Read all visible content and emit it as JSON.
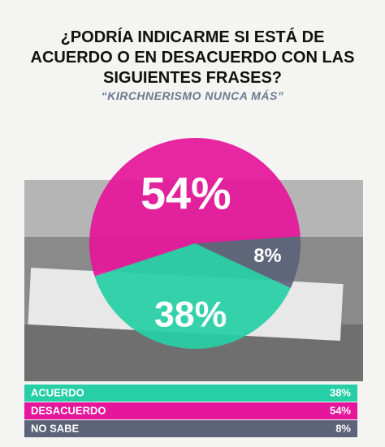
{
  "chart_data": {
    "type": "pie",
    "title": "¿PODRÍA INDICARME SI ESTÁ DE ACUERDO O EN DESACUERDO CON LAS SIGUIENTES FRASES?",
    "subtitle": "“KIRCHNERISMO NUNCA MÁS”",
    "categories": [
      "ACUERDO",
      "DESACUERDO",
      "NO SABE"
    ],
    "values": [
      38,
      54,
      8
    ],
    "value_labels": [
      "38%",
      "54%",
      "8%"
    ],
    "colors": [
      "#27cfa6",
      "#e5169b",
      "#5d6378"
    ]
  }
}
